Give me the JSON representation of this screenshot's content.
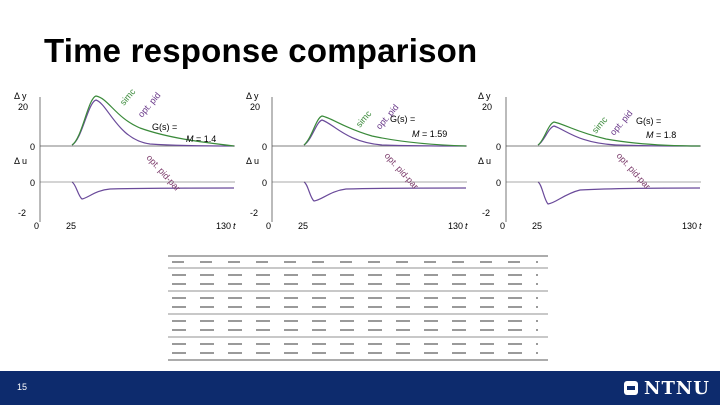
{
  "slide": {
    "title": "Time response comparison",
    "page_number": "15",
    "logo_text": "NTNU"
  },
  "panels": [
    {
      "dy_label": "Δ y",
      "du_label": "Δ u",
      "y_tick_top": "20",
      "y_tick_zero": "0",
      "u_tick_zero": "0",
      "u_tick_low": "-2",
      "x_ticks": [
        "0",
        "25",
        "130"
      ],
      "t_label": "t",
      "transfer": "G(s) =",
      "ms": "M",
      "ms_value": "= 1.4",
      "label_simc": "simc",
      "label_optpid": "opt. pid",
      "label_optpidpar": "opt. pid-par"
    },
    {
      "dy_label": "Δ y",
      "du_label": "Δ u",
      "y_tick_top": "20",
      "y_tick_zero": "0",
      "u_tick_zero": "0",
      "u_tick_low": "-2",
      "x_ticks": [
        "0",
        "25",
        "130"
      ],
      "t_label": "t",
      "transfer": "G(s) =",
      "ms": "M",
      "ms_value": "= 1.59",
      "label_simc": "simc",
      "label_optpid": "opt. pid",
      "label_optpidpar": "opt. pid-par"
    },
    {
      "dy_label": "Δ y",
      "du_label": "Δ u",
      "y_tick_top": "20",
      "y_tick_zero": "0",
      "u_tick_zero": "0",
      "u_tick_low": "-2",
      "x_ticks": [
        "0",
        "25",
        "130"
      ],
      "t_label": "t",
      "transfer": "G(s) =",
      "ms": "M",
      "ms_value": "= 1.8",
      "label_simc": "simc",
      "label_optpid": "opt. pid",
      "label_optpidpar": "opt. pid-par"
    }
  ],
  "colors": {
    "simc": "#3a8a3a",
    "optpid": "#6a3a8a",
    "optpidpar": "#7a3a6a",
    "footer": "#0d2b6d"
  }
}
